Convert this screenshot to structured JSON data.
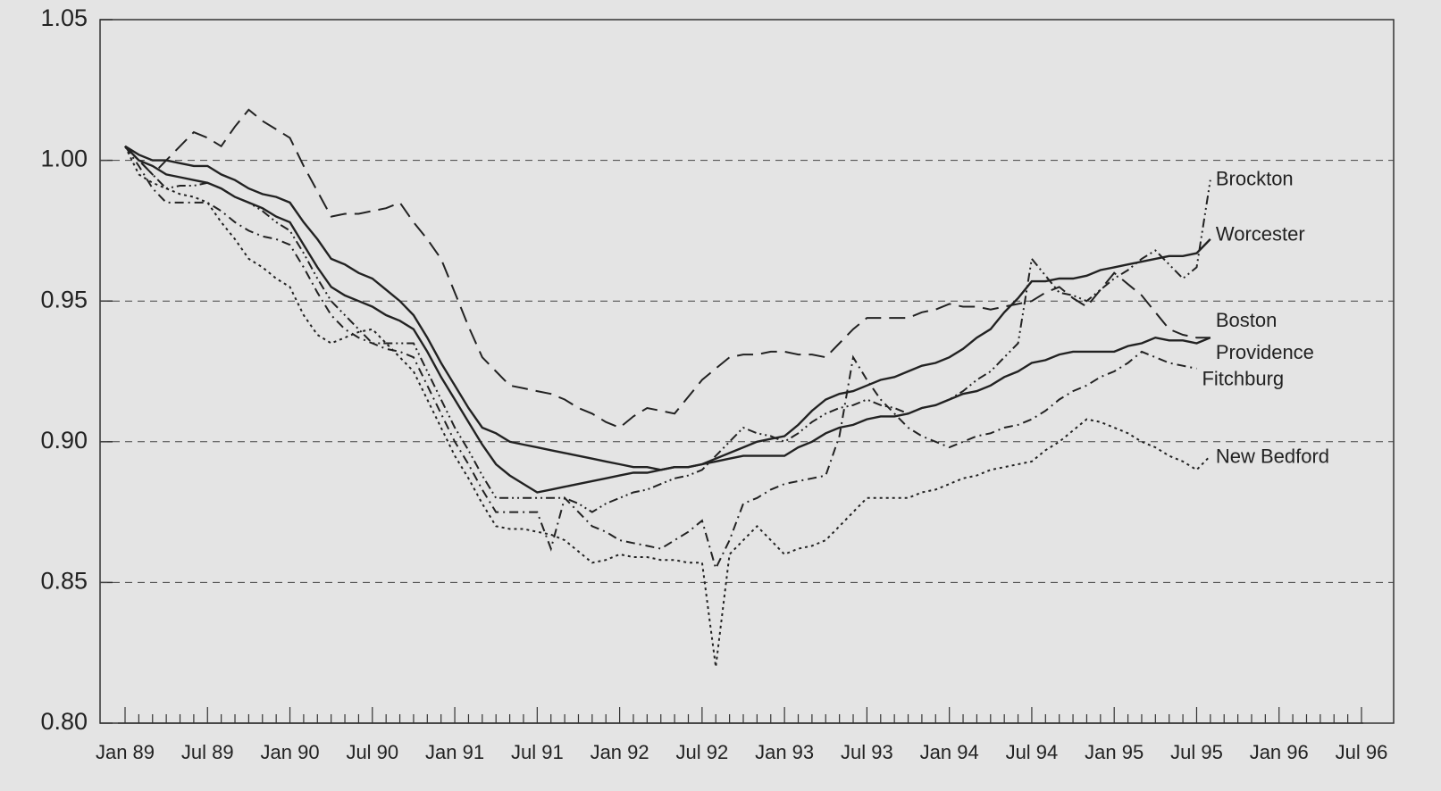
{
  "chart_data": {
    "type": "line",
    "categories": [
      "Jan 89",
      null,
      null,
      null,
      null,
      null,
      "Jul 89",
      null,
      null,
      null,
      null,
      null,
      "Jan 90",
      null,
      null,
      null,
      null,
      null,
      "Jul 90",
      null,
      null,
      null,
      null,
      null,
      "Jan 91",
      null,
      null,
      null,
      null,
      null,
      "Jul 91",
      null,
      null,
      null,
      null,
      null,
      "Jan 92",
      null,
      null,
      null,
      null,
      null,
      "Jul 92",
      null,
      null,
      null,
      null,
      null,
      "Jan 93",
      null,
      null,
      null,
      null,
      null,
      "Jul 93",
      null,
      null,
      null,
      null,
      null,
      "Jan 94",
      null,
      null,
      null,
      null,
      null,
      "Jul 94",
      null,
      null,
      null,
      null,
      null,
      "Jan 95",
      null,
      null,
      null,
      null,
      null,
      "Jul 95",
      null,
      null,
      null,
      null,
      null,
      "Jan 96",
      null,
      null,
      null,
      null,
      null,
      "Jul 96"
    ],
    "ylim": [
      0.8,
      1.05
    ],
    "yticks": [
      {
        "value": 0.8,
        "label": "0.80"
      },
      0.85,
      {
        "value": 0.9,
        "label": "0.90"
      },
      0.95,
      {
        "value": 1.0,
        "label": "1.00"
      },
      1.05
    ],
    "grid": true,
    "series": [
      {
        "name": "Brockton",
        "color": "#222222",
        "dash": "dashdotdot",
        "values": [
          1.005,
          1.0,
          0.995,
          0.99,
          0.991,
          0.991,
          0.992,
          0.99,
          0.987,
          0.985,
          0.982,
          0.978,
          0.975,
          0.967,
          0.958,
          0.95,
          0.945,
          0.94,
          0.935,
          0.935,
          0.935,
          0.935,
          0.925,
          0.915,
          0.905,
          0.897,
          0.888,
          0.88,
          0.88,
          0.88,
          0.88,
          0.88,
          0.88,
          0.878,
          0.875,
          0.878,
          0.88,
          0.882,
          0.883,
          0.885,
          0.887,
          0.888,
          0.89,
          0.895,
          0.9,
          0.905,
          0.903,
          0.902,
          0.9,
          0.903,
          0.907,
          0.91,
          0.912,
          0.913,
          0.915,
          0.913,
          0.912,
          0.91,
          0.912,
          0.913,
          0.915,
          0.918,
          0.922,
          0.925,
          0.93,
          0.935,
          0.965,
          0.959,
          0.953,
          0.952,
          0.95,
          0.954,
          0.958,
          0.961,
          0.965,
          0.968,
          0.963,
          0.958,
          0.962,
          0.993,
          null,
          null,
          null,
          null,
          null,
          null,
          null,
          null,
          null,
          null,
          null
        ]
      },
      {
        "name": "Worcester",
        "color": "#222222",
        "dash": "solid",
        "values": [
          1.005,
          1.002,
          1.0,
          1.0,
          0.999,
          0.998,
          0.998,
          0.995,
          0.993,
          0.99,
          0.988,
          0.987,
          0.985,
          0.978,
          0.972,
          0.965,
          0.963,
          0.96,
          0.958,
          0.954,
          0.95,
          0.945,
          0.937,
          0.928,
          0.92,
          0.912,
          0.905,
          0.903,
          0.9,
          0.899,
          0.898,
          0.897,
          0.896,
          0.895,
          0.894,
          0.893,
          0.892,
          0.891,
          0.891,
          0.89,
          0.891,
          0.891,
          0.892,
          0.894,
          0.896,
          0.898,
          0.9,
          0.901,
          0.902,
          0.906,
          0.911,
          0.915,
          0.917,
          0.918,
          0.92,
          0.922,
          0.923,
          0.925,
          0.927,
          0.928,
          0.93,
          0.933,
          0.937,
          0.94,
          0.946,
          0.951,
          0.957,
          0.957,
          0.958,
          0.958,
          0.959,
          0.961,
          0.962,
          0.963,
          0.964,
          0.965,
          0.966,
          0.966,
          0.967,
          0.972,
          null,
          null,
          null,
          null,
          null,
          null,
          null,
          null,
          null,
          null,
          null
        ]
      },
      {
        "name": "Boston",
        "color": "#222222",
        "dash": "dashed",
        "values": [
          1.005,
          1.0,
          0.995,
          1.0,
          1.005,
          1.01,
          1.008,
          1.005,
          1.012,
          1.018,
          1.014,
          1.011,
          1.008,
          0.998,
          0.989,
          0.98,
          0.981,
          0.981,
          0.982,
          0.983,
          0.985,
          0.978,
          0.972,
          0.965,
          0.953,
          0.941,
          0.93,
          0.925,
          0.92,
          0.919,
          0.918,
          0.917,
          0.915,
          0.912,
          0.91,
          0.907,
          0.905,
          0.909,
          0.912,
          0.911,
          0.91,
          0.916,
          0.922,
          0.926,
          0.93,
          0.931,
          0.931,
          0.932,
          0.932,
          0.931,
          0.931,
          0.93,
          0.935,
          0.94,
          0.944,
          0.944,
          0.944,
          0.944,
          0.946,
          0.947,
          0.949,
          0.948,
          0.948,
          0.947,
          0.948,
          0.949,
          0.95,
          0.953,
          0.955,
          0.951,
          0.948,
          0.954,
          0.96,
          0.956,
          0.952,
          0.946,
          0.94,
          0.938,
          0.937,
          0.937,
          null,
          null,
          null,
          null,
          null,
          null,
          null,
          null,
          null,
          null,
          null
        ]
      },
      {
        "name": "Providence",
        "color": "#222222",
        "dash": "solid",
        "values": [
          1.005,
          1.0,
          0.998,
          0.995,
          0.994,
          0.993,
          0.992,
          0.99,
          0.987,
          0.985,
          0.983,
          0.98,
          0.978,
          0.97,
          0.962,
          0.955,
          0.952,
          0.95,
          0.948,
          0.945,
          0.943,
          0.94,
          0.932,
          0.923,
          0.915,
          0.907,
          0.899,
          0.892,
          0.888,
          0.885,
          0.882,
          0.883,
          0.884,
          0.885,
          0.886,
          0.887,
          0.888,
          0.889,
          0.889,
          0.89,
          0.891,
          0.891,
          0.892,
          0.893,
          0.894,
          0.895,
          0.895,
          0.895,
          0.895,
          0.898,
          0.9,
          0.903,
          0.905,
          0.906,
          0.908,
          0.909,
          0.909,
          0.91,
          0.912,
          0.913,
          0.915,
          0.917,
          0.918,
          0.92,
          0.923,
          0.925,
          0.928,
          0.929,
          0.931,
          0.932,
          0.932,
          0.932,
          0.932,
          0.934,
          0.935,
          0.937,
          0.936,
          0.936,
          0.935,
          0.937,
          null,
          null,
          null,
          null,
          null,
          null,
          null,
          null,
          null,
          null,
          null
        ]
      },
      {
        "name": "Fitchburg",
        "color": "#222222",
        "dash": "dashdot",
        "values": [
          1.005,
          0.998,
          0.99,
          0.985,
          0.985,
          0.985,
          0.985,
          0.982,
          0.978,
          0.975,
          0.973,
          0.972,
          0.97,
          0.962,
          0.953,
          0.945,
          0.94,
          0.937,
          0.935,
          0.933,
          0.932,
          0.93,
          0.92,
          0.91,
          0.9,
          0.892,
          0.883,
          0.875,
          0.875,
          0.875,
          0.875,
          0.862,
          0.88,
          0.875,
          0.87,
          0.868,
          0.865,
          0.864,
          0.863,
          0.862,
          0.865,
          0.868,
          0.872,
          0.855,
          0.865,
          0.878,
          0.88,
          0.883,
          0.885,
          0.886,
          0.887,
          0.888,
          0.902,
          0.93,
          0.922,
          0.915,
          0.91,
          0.905,
          0.902,
          0.9,
          0.898,
          0.9,
          0.902,
          0.903,
          0.905,
          0.906,
          0.908,
          0.911,
          0.915,
          0.918,
          0.92,
          0.923,
          0.925,
          0.928,
          0.932,
          0.93,
          0.928,
          0.927,
          0.926,
          null,
          null,
          null,
          null,
          null,
          null,
          null,
          null,
          null,
          null,
          null,
          null
        ]
      },
      {
        "name": "New Bedford",
        "color": "#222222",
        "dash": "dotted",
        "values": [
          1.005,
          0.995,
          0.992,
          0.99,
          0.988,
          0.987,
          0.985,
          0.978,
          0.972,
          0.965,
          0.962,
          0.958,
          0.955,
          0.945,
          0.938,
          0.935,
          0.937,
          0.939,
          0.94,
          0.935,
          0.93,
          0.925,
          0.915,
          0.905,
          0.895,
          0.887,
          0.878,
          0.87,
          0.869,
          0.869,
          0.868,
          0.867,
          0.865,
          0.861,
          0.857,
          0.858,
          0.86,
          0.859,
          0.859,
          0.858,
          0.858,
          0.857,
          0.857,
          0.82,
          0.86,
          0.865,
          0.87,
          0.865,
          0.86,
          0.862,
          0.863,
          0.865,
          0.87,
          0.875,
          0.88,
          0.88,
          0.88,
          0.88,
          0.882,
          0.883,
          0.885,
          0.887,
          0.888,
          0.89,
          0.891,
          0.892,
          0.893,
          0.897,
          0.9,
          0.904,
          0.908,
          0.907,
          0.905,
          0.903,
          0.9,
          0.898,
          0.895,
          0.893,
          0.89,
          0.895,
          null,
          null,
          null,
          null,
          null,
          null,
          null,
          null,
          null,
          null,
          null
        ]
      }
    ]
  }
}
